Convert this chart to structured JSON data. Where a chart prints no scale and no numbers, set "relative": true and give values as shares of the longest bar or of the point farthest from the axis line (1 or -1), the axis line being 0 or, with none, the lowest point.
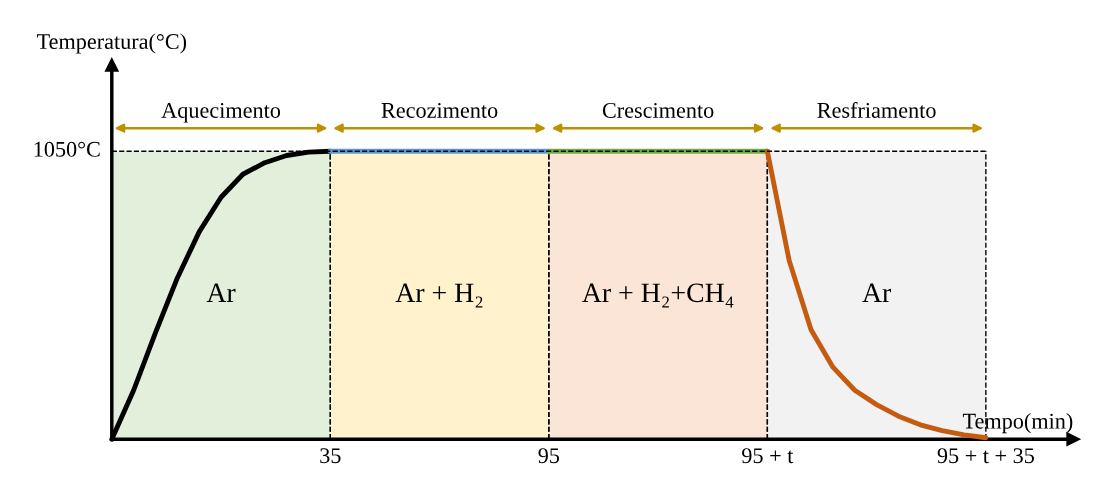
{
  "chart_data": {
    "type": "line",
    "xlabel": "Tempo(min)",
    "ylabel": "Temperatura(°C)",
    "relative": true,
    "grid": false,
    "legend": false,
    "categories": [
      null,
      null,
      null,
      null,
      null,
      null,
      null,
      null,
      null,
      null,
      "35",
      null,
      null,
      null,
      null,
      null,
      null,
      null,
      null,
      null,
      "95",
      null,
      null,
      null,
      null,
      null,
      null,
      null,
      null,
      null,
      "95 + t",
      null,
      null,
      null,
      null,
      null,
      null,
      null,
      null,
      null,
      "95 + t + 35"
    ],
    "series": [
      {
        "color": "#000000",
        "values": [
          0,
          0.17,
          0.37,
          0.56,
          0.72,
          0.84,
          0.92,
          0.96,
          0.985,
          0.997,
          1,
          null,
          null,
          null,
          null,
          null,
          null,
          null,
          null,
          null,
          null,
          null,
          null,
          null,
          null,
          null,
          null,
          null,
          null,
          null,
          null,
          null,
          null,
          null,
          null,
          null,
          null,
          null,
          null,
          null,
          null
        ]
      },
      {
        "color": "#5b9bd5",
        "values": [
          null,
          null,
          null,
          null,
          null,
          null,
          null,
          null,
          null,
          null,
          1,
          1,
          1,
          1,
          1,
          1,
          1,
          1,
          1,
          1,
          1,
          null,
          null,
          null,
          null,
          null,
          null,
          null,
          null,
          null,
          null,
          null,
          null,
          null,
          null,
          null,
          null,
          null,
          null,
          null,
          null
        ]
      },
      {
        "color": "#70ad47",
        "values": [
          null,
          null,
          null,
          null,
          null,
          null,
          null,
          null,
          null,
          null,
          null,
          null,
          null,
          null,
          null,
          null,
          null,
          null,
          null,
          null,
          1,
          1,
          1,
          1,
          1,
          1,
          1,
          1,
          1,
          1,
          1,
          null,
          null,
          null,
          null,
          null,
          null,
          null,
          null,
          null,
          null
        ]
      },
      {
        "color": "#c55a11",
        "values": [
          null,
          null,
          null,
          null,
          null,
          null,
          null,
          null,
          null,
          null,
          null,
          null,
          null,
          null,
          null,
          null,
          null,
          null,
          null,
          null,
          null,
          null,
          null,
          null,
          null,
          null,
          null,
          null,
          null,
          null,
          1,
          0.62,
          0.38,
          0.25,
          0.17,
          0.12,
          0.08,
          0.05,
          0.03,
          0.015,
          0.005
        ]
      }
    ],
    "bands": [
      {
        "axis": "x",
        "from": "35",
        "to": "95",
        "label": "Ar + H₂",
        "color": "#fff2cc"
      },
      {
        "axis": "x",
        "from": "95",
        "to": "95 + t",
        "label": "Ar + H₂+CH₄",
        "color": "#fbe5d6"
      },
      {
        "axis": "x",
        "from": "95 + t",
        "to": "95 + t + 35",
        "label": "Ar",
        "color": "#f2f2f2"
      }
    ],
    "ref_lines": [
      {
        "axis": "y",
        "value": 1,
        "label": "1050°C",
        "line_style": "dashed",
        "color": "#000000"
      }
    ],
    "annotations": [
      "Aquecimento",
      "Recozimento",
      "Crescimento",
      "Resfriamento",
      "Ar"
    ]
  }
}
